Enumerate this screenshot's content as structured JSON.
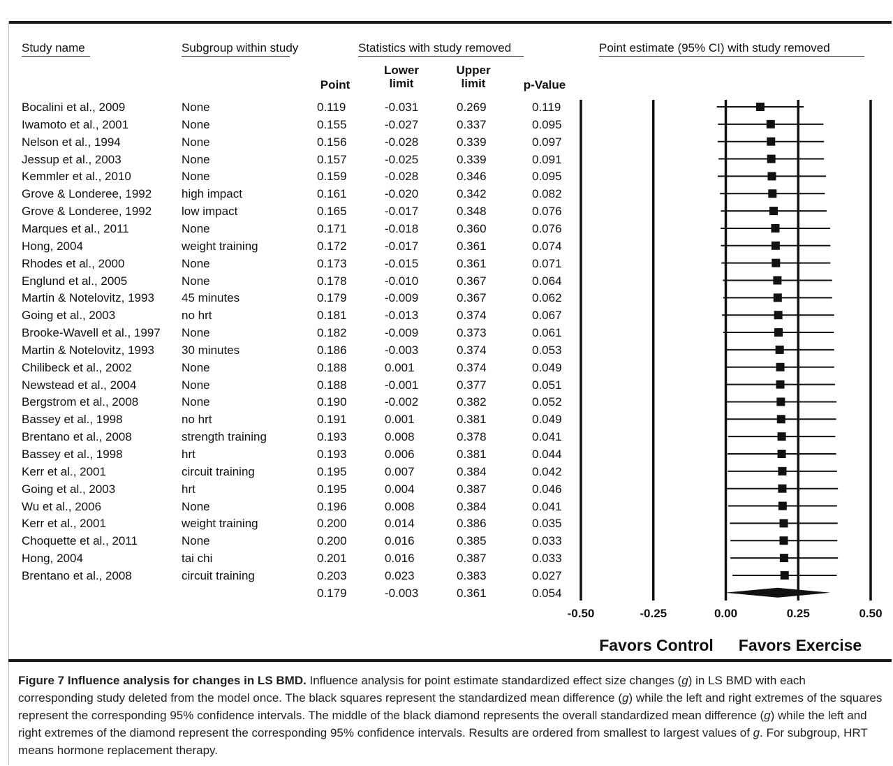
{
  "headers": {
    "study_name": "Study name",
    "subgroup": "Subgroup within study",
    "stats_group": "Statistics with study removed",
    "plot_group": "Point estimate (95% CI) with study removed",
    "point": "Point",
    "lower_1": "Lower",
    "lower_2": "limit",
    "upper_1": "Upper",
    "upper_2": "limit",
    "pvalue": "p-Value"
  },
  "chart_data": {
    "type": "forest",
    "xlim": [
      -0.5,
      0.5
    ],
    "ticks": [
      "-0.50",
      "-0.25",
      "0.00",
      "0.25",
      "0.50"
    ],
    "tick_values": [
      -0.5,
      -0.25,
      0.0,
      0.25,
      0.5
    ],
    "favors_left": "Favors Control",
    "favors_right": "Favors Exercise",
    "rows": [
      {
        "study": "Bocalini et al., 2009",
        "subgroup": "None",
        "point": "0.119",
        "lower": "-0.031",
        "upper": "0.269",
        "p": "0.119"
      },
      {
        "study": "Iwamoto et al., 2001",
        "subgroup": "None",
        "point": "0.155",
        "lower": "-0.027",
        "upper": "0.337",
        "p": "0.095"
      },
      {
        "study": "Nelson et al., 1994",
        "subgroup": "None",
        "point": "0.156",
        "lower": "-0.028",
        "upper": "0.339",
        "p": "0.097"
      },
      {
        "study": "Jessup et al., 2003",
        "subgroup": "None",
        "point": "0.157",
        "lower": "-0.025",
        "upper": "0.339",
        "p": "0.091"
      },
      {
        "study": "Kemmler et al., 2010",
        "subgroup": "None",
        "point": "0.159",
        "lower": "-0.028",
        "upper": "0.346",
        "p": "0.095"
      },
      {
        "study": "Grove & Londeree, 1992",
        "subgroup": "high impact",
        "point": "0.161",
        "lower": "-0.020",
        "upper": "0.342",
        "p": "0.082"
      },
      {
        "study": "Grove & Londeree, 1992",
        "subgroup": "low impact",
        "point": "0.165",
        "lower": "-0.017",
        "upper": "0.348",
        "p": "0.076"
      },
      {
        "study": "Marques et al., 2011",
        "subgroup": "None",
        "point": "0.171",
        "lower": "-0.018",
        "upper": "0.360",
        "p": "0.076"
      },
      {
        "study": "Hong, 2004",
        "subgroup": "weight training",
        "point": "0.172",
        "lower": "-0.017",
        "upper": "0.361",
        "p": "0.074"
      },
      {
        "study": "Rhodes et al., 2000",
        "subgroup": "None",
        "point": "0.173",
        "lower": "-0.015",
        "upper": "0.361",
        "p": "0.071"
      },
      {
        "study": "Englund et al., 2005",
        "subgroup": "None",
        "point": "0.178",
        "lower": "-0.010",
        "upper": "0.367",
        "p": "0.064"
      },
      {
        "study": "Martin & Notelovitz, 1993",
        "subgroup": "45 minutes",
        "point": "0.179",
        "lower": "-0.009",
        "upper": "0.367",
        "p": "0.062"
      },
      {
        "study": "Going et al., 2003",
        "subgroup": "no hrt",
        "point": "0.181",
        "lower": "-0.013",
        "upper": "0.374",
        "p": "0.067"
      },
      {
        "study": "Brooke-Wavell et al., 1997",
        "subgroup": "None",
        "point": "0.182",
        "lower": "-0.009",
        "upper": "0.373",
        "p": "0.061"
      },
      {
        "study": "Martin & Notelovitz, 1993",
        "subgroup": "30 minutes",
        "point": "0.186",
        "lower": "-0.003",
        "upper": "0.374",
        "p": "0.053"
      },
      {
        "study": "Chilibeck et al., 2002",
        "subgroup": "None",
        "point": "0.188",
        "lower": "0.001",
        "upper": "0.374",
        "p": "0.049"
      },
      {
        "study": "Newstead et al., 2004",
        "subgroup": "None",
        "point": "0.188",
        "lower": "-0.001",
        "upper": "0.377",
        "p": "0.051"
      },
      {
        "study": "Bergstrom et al., 2008",
        "subgroup": "None",
        "point": "0.190",
        "lower": "-0.002",
        "upper": "0.382",
        "p": "0.052"
      },
      {
        "study": "Bassey et al., 1998",
        "subgroup": "no hrt",
        "point": "0.191",
        "lower": "0.001",
        "upper": "0.381",
        "p": "0.049"
      },
      {
        "study": "Brentano et al., 2008",
        "subgroup": "strength training",
        "point": "0.193",
        "lower": "0.008",
        "upper": "0.378",
        "p": "0.041"
      },
      {
        "study": "Bassey et al., 1998",
        "subgroup": "hrt",
        "point": "0.193",
        "lower": "0.006",
        "upper": "0.381",
        "p": "0.044"
      },
      {
        "study": "Kerr et al., 2001",
        "subgroup": "circuit training",
        "point": "0.195",
        "lower": "0.007",
        "upper": "0.384",
        "p": "0.042"
      },
      {
        "study": "Going et al., 2003",
        "subgroup": "hrt",
        "point": "0.195",
        "lower": "0.004",
        "upper": "0.387",
        "p": "0.046"
      },
      {
        "study": "Wu et al., 2006",
        "subgroup": "None",
        "point": "0.196",
        "lower": "0.008",
        "upper": "0.384",
        "p": "0.041"
      },
      {
        "study": "Kerr et al., 2001",
        "subgroup": "weight training",
        "point": "0.200",
        "lower": "0.014",
        "upper": "0.386",
        "p": "0.035"
      },
      {
        "study": "Choquette et al., 2011",
        "subgroup": "None",
        "point": "0.200",
        "lower": "0.016",
        "upper": "0.385",
        "p": "0.033"
      },
      {
        "study": "Hong, 2004",
        "subgroup": "tai chi",
        "point": "0.201",
        "lower": "0.016",
        "upper": "0.387",
        "p": "0.033"
      },
      {
        "study": "Brentano et al., 2008",
        "subgroup": "circuit training",
        "point": "0.203",
        "lower": "0.023",
        "upper": "0.383",
        "p": "0.027"
      }
    ],
    "overall": {
      "point": "0.179",
      "lower": "-0.003",
      "upper": "0.361",
      "p": "0.054"
    }
  },
  "caption": {
    "title": "Figure 7 Influence analysis for changes in LS BMD.",
    "p1": " Influence analysis for point estimate standardized effect size changes (",
    "g1": "g",
    "p2": ") in LS BMD with each corresponding study deleted from the model once. The black squares represent the standardized mean difference (",
    "g2": "g",
    "p3": ") while the left and right extremes of the squares represent the corresponding 95% confidence intervals. The middle of the black diamond represents the overall standardized mean difference (",
    "g3": "g",
    "p4": ") while the left and right extremes of the diamond represent the corresponding 95% confidence intervals. Results are ordered from smallest to largest values of ",
    "g4": "g",
    "p5": ". For subgroup, HRT means hormone replacement therapy."
  }
}
